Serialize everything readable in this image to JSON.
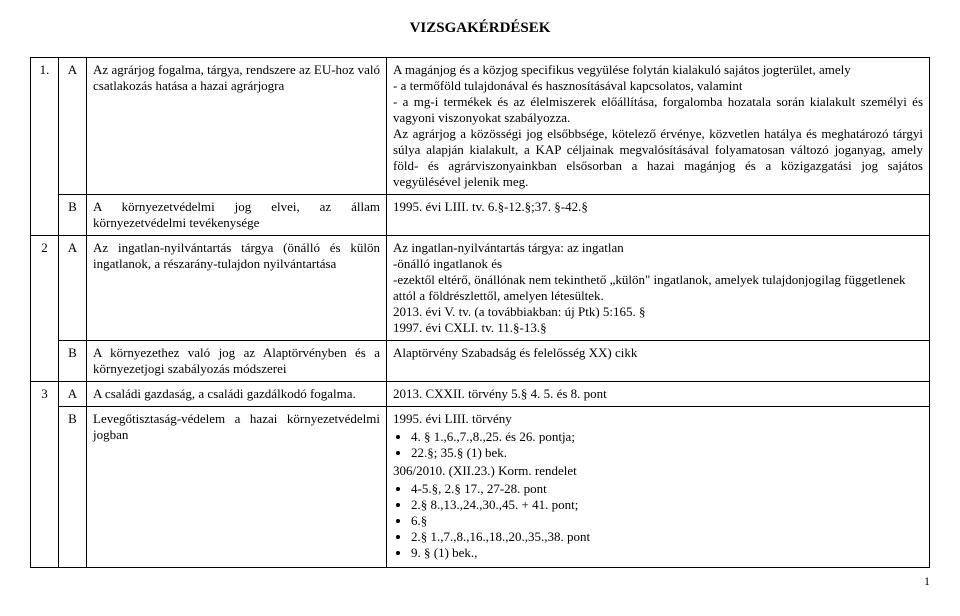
{
  "page_title": "VIZSGAKÉRDÉSEK",
  "page_number": "1",
  "rows": {
    "r1": {
      "num": "1.",
      "a_label": "A",
      "a_left": "Az agrárjog fogalma, tárgya, rendszere az EU-hoz való csatlakozás hatása a hazai agrárjogra",
      "a_right_p1": "A magánjog és a közjog specifikus vegyülése folytán kialakuló sajátos jogterület, amely",
      "a_right_p2": "- a termőföld tulajdonával és hasznosításával kapcsolatos, valamint",
      "a_right_p3": "- a mg-i termékek és az élelmiszerek előállítása, forgalomba hozatala során kialakult személyi és vagyoni viszonyokat szabályozza.",
      "a_right_p4": "Az agrárjog a közösségi jog elsőbbsége, kötelező érvénye, közvetlen hatálya és meghatározó tárgyi súlya alapján kialakult, a KAP céljainak megvalósításával folyamatosan változó joganyag, amely föld- és agrárviszonyainkban elsősorban a hazai magánjog és a közigazgatási jog sajátos vegyülésével jelenik meg.",
      "b_label": "B",
      "b_left": "A környezetvédelmi jog elvei, az állam környezetvédelmi tevékenysége",
      "b_right": "1995. évi LIII. tv. 6.§-12.§;37. §-42.§"
    },
    "r2": {
      "num": "2",
      "a_label": "A",
      "a_left": "Az ingatlan-nyilvántartás tárgya (önálló és külön ingatlanok, a részarány-tulajdon nyilvántartása",
      "a_right_p1": "Az ingatlan-nyilvántartás tárgya: az ingatlan",
      "a_right_p2": "-önálló ingatlanok és",
      "a_right_p3": "-ezektől eltérő, önállónak nem tekinthető „külön\" ingatlanok, amelyek tulajdonjogilag függetlenek attól a földrészlettől, amelyen létesültek.",
      "a_right_p4": "2013. évi V. tv. (a továbbiakban: új Ptk) 5:165. §",
      "a_right_p5": "1997. évi CXLI. tv. 11.§-13.§",
      "b_label": "B",
      "b_left": "A környezethez való jog az Alaptörvényben és a környezetjogi szabályozás módszerei",
      "b_right": "Alaptörvény Szabadság és felelősség XX) cikk"
    },
    "r3": {
      "num": "3",
      "a_label": "A",
      "a_left": "A családi gazdaság, a családi gazdálkodó fogalma.",
      "a_right": "2013. CXXII. törvény 5.§ 4. 5. és 8. pont",
      "b_label": "B",
      "b_left": "Levegőtisztaság-védelem a hazai környezetvédelmi jogban",
      "b_right_head1": "1995. évi LIII. törvény",
      "b_bullets1": [
        "4. § 1.,6.,7.,8.,25. és 26. pontja;",
        "22.§; 35.§ (1) bek."
      ],
      "b_right_head2": "306/2010. (XII.23.) Korm. rendelet",
      "b_bullets2": [
        "4-5.§, 2.§ 17., 27-28. pont",
        "2.§ 8.,13.,24.,30.,45. + 41. pont;",
        "6.§",
        "2.§ 1.,7.,8.,16.,18.,20.,35.,38. pont",
        "9. § (1) bek.,"
      ]
    }
  }
}
